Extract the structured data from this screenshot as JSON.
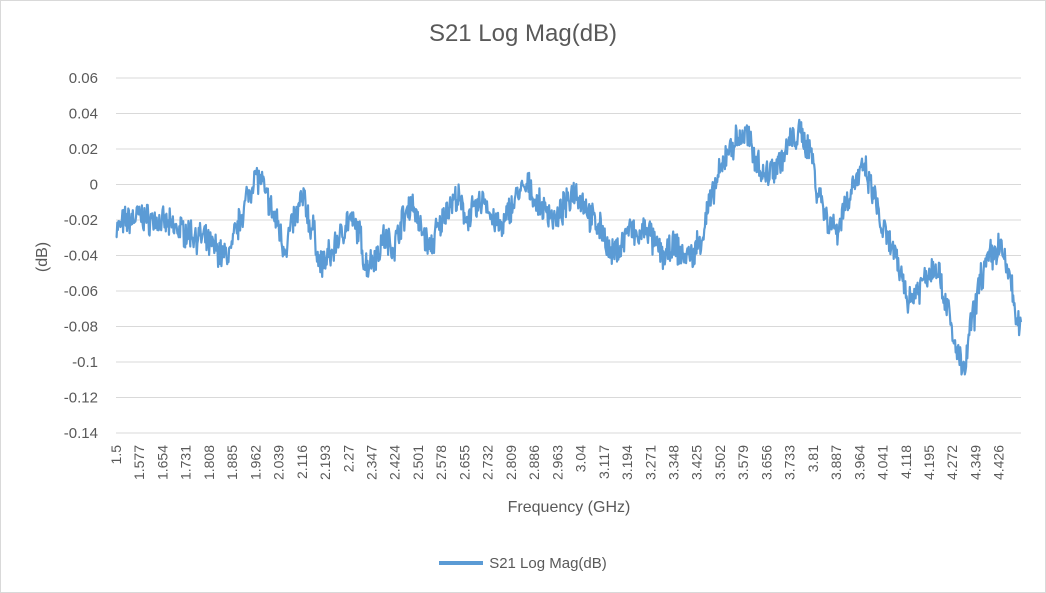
{
  "chart_data": {
    "type": "line",
    "title": "S21 Log Mag(dB)",
    "xlabel": "Frequency (GHz)",
    "ylabel": "(dB)",
    "ylim": [
      -0.14,
      0.06
    ],
    "yticks": [
      "0.06",
      "0.04",
      "0.02",
      "0",
      "-0.02",
      "-0.04",
      "-0.06",
      "-0.08",
      "-0.1",
      "-0.12",
      "-0.14"
    ],
    "xlim": [
      1.5,
      4.5
    ],
    "xticks": [
      "1.5",
      "1.577",
      "1.654",
      "1.731",
      "1.808",
      "1.885",
      "1.962",
      "2.039",
      "2.116",
      "2.193",
      "2.27",
      "2.347",
      "2.424",
      "2.501",
      "2.578",
      "2.655",
      "2.732",
      "2.809",
      "2.886",
      "2.963",
      "3.04",
      "3.117",
      "3.194",
      "3.271",
      "3.348",
      "3.425",
      "3.502",
      "3.579",
      "3.656",
      "3.733",
      "3.81",
      "3.887",
      "3.964",
      "4.041",
      "4.118",
      "4.195",
      "4.272",
      "4.349",
      "4.426"
    ],
    "grid": true,
    "legend_position": "bottom",
    "series": [
      {
        "name": "S21 Log Mag(dB)",
        "color": "#5b9bd5",
        "x": [
          1.5,
          1.54,
          1.58,
          1.62,
          1.66,
          1.7,
          1.74,
          1.78,
          1.82,
          1.86,
          1.88,
          1.9,
          1.92,
          1.94,
          1.96,
          1.98,
          2.0,
          2.03,
          2.06,
          2.09,
          2.12,
          2.15,
          2.18,
          2.21,
          2.24,
          2.27,
          2.3,
          2.33,
          2.36,
          2.39,
          2.42,
          2.45,
          2.48,
          2.51,
          2.54,
          2.57,
          2.6,
          2.63,
          2.66,
          2.69,
          2.72,
          2.75,
          2.78,
          2.81,
          2.84,
          2.87,
          2.9,
          2.93,
          2.96,
          2.99,
          3.02,
          3.05,
          3.08,
          3.11,
          3.14,
          3.17,
          3.2,
          3.23,
          3.26,
          3.29,
          3.32,
          3.35,
          3.38,
          3.41,
          3.44,
          3.47,
          3.5,
          3.53,
          3.56,
          3.59,
          3.62,
          3.65,
          3.68,
          3.71,
          3.74,
          3.77,
          3.8,
          3.83,
          3.86,
          3.89,
          3.92,
          3.95,
          3.98,
          4.01,
          4.04,
          4.07,
          4.1,
          4.13,
          4.16,
          4.19,
          4.22,
          4.25,
          4.28,
          4.31,
          4.34,
          4.37,
          4.4,
          4.43,
          4.46,
          4.49
        ],
        "values": [
          -0.025,
          -0.02,
          -0.018,
          -0.02,
          -0.022,
          -0.025,
          -0.027,
          -0.03,
          -0.035,
          -0.04,
          -0.038,
          -0.025,
          -0.015,
          -0.005,
          0.005,
          0.002,
          -0.008,
          -0.02,
          -0.035,
          -0.02,
          -0.008,
          -0.025,
          -0.045,
          -0.04,
          -0.03,
          -0.02,
          -0.025,
          -0.045,
          -0.04,
          -0.03,
          -0.035,
          -0.02,
          -0.01,
          -0.025,
          -0.035,
          -0.025,
          -0.012,
          -0.008,
          -0.018,
          -0.015,
          -0.008,
          -0.02,
          -0.025,
          -0.012,
          -0.004,
          -0.002,
          -0.012,
          -0.015,
          -0.02,
          -0.012,
          -0.003,
          -0.01,
          -0.02,
          -0.025,
          -0.04,
          -0.035,
          -0.025,
          -0.03,
          -0.025,
          -0.035,
          -0.04,
          -0.035,
          -0.04,
          -0.04,
          -0.03,
          -0.01,
          0.005,
          0.02,
          0.025,
          0.028,
          0.015,
          0.005,
          0.01,
          0.015,
          0.025,
          0.028,
          0.02,
          -0.005,
          -0.02,
          -0.025,
          -0.01,
          0.002,
          0.008,
          -0.005,
          -0.025,
          -0.035,
          -0.05,
          -0.065,
          -0.058,
          -0.05,
          -0.045,
          -0.065,
          -0.09,
          -0.105,
          -0.075,
          -0.05,
          -0.04,
          -0.035,
          -0.05,
          -0.08
        ]
      }
    ]
  }
}
